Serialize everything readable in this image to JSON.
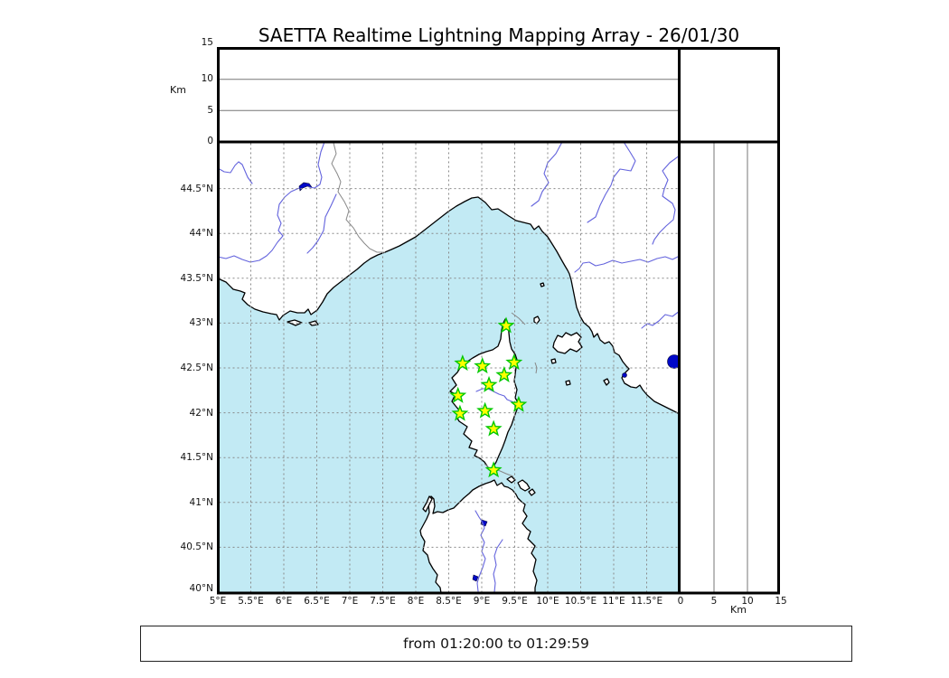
{
  "title": "SAETTA Realtime Lightning Mapping Array - 26/01/30",
  "time_range": "from 01:20:00 to 01:29:59",
  "units": {
    "altitude_left": "Km",
    "altitude_right": "Km"
  },
  "axes": {
    "alt_left": [
      "15",
      "10",
      "5",
      "0"
    ],
    "alt_right": [
      "0",
      "5",
      "10",
      "15"
    ],
    "lat": [
      "44.5°N",
      "44°N",
      "43.5°N",
      "43°N",
      "42.5°N",
      "42°N",
      "41.5°N",
      "41°N",
      "40.5°N",
      "40°N"
    ],
    "lon": [
      "5°E",
      "5.5°E",
      "6°E",
      "6.5°E",
      "7°E",
      "7.5°E",
      "8°E",
      "8.5°E",
      "9°E",
      "9.5°E",
      "10°E",
      "10.5°E",
      "11°E",
      "11.5°E"
    ]
  },
  "colors": {
    "sea": "#c2eaf4",
    "land": "#ffffff",
    "coast": "#000000",
    "river": "#6363dd",
    "lake": "#0008c8",
    "grid": "#888888",
    "border_line": "#888888",
    "station_fill": "#ffff00",
    "station_stroke": "#00c800"
  },
  "stations": [
    {
      "lon": 9.37,
      "lat": 42.98
    },
    {
      "lon": 8.71,
      "lat": 42.56
    },
    {
      "lon": 9.01,
      "lat": 42.53
    },
    {
      "lon": 9.49,
      "lat": 42.57
    },
    {
      "lon": 9.34,
      "lat": 42.43
    },
    {
      "lon": 9.11,
      "lat": 42.32
    },
    {
      "lon": 8.64,
      "lat": 42.2
    },
    {
      "lon": 9.56,
      "lat": 42.1
    },
    {
      "lon": 9.05,
      "lat": 42.03
    },
    {
      "lon": 8.67,
      "lat": 42.0
    },
    {
      "lon": 9.18,
      "lat": 41.83
    },
    {
      "lon": 9.18,
      "lat": 41.37
    }
  ],
  "chart_data": {
    "type": "map",
    "title": "SAETTA Realtime Lightning Mapping Array - 26/01/30",
    "lon_range_deg_e": [
      5.0,
      12.0
    ],
    "lat_range_deg_n": [
      40.0,
      45.0
    ],
    "lon_tick_labels": [
      "5°E",
      "5.5°E",
      "6°E",
      "6.5°E",
      "7°E",
      "7.5°E",
      "8°E",
      "8.5°E",
      "9°E",
      "9.5°E",
      "10°E",
      "10.5°E",
      "11°E",
      "11.5°E"
    ],
    "lat_tick_labels": [
      "44.5°N",
      "44°N",
      "43.5°N",
      "43°N",
      "42.5°N",
      "42°N",
      "41.5°N",
      "41°N",
      "40.5°N",
      "40°N"
    ],
    "altitude_panels_km_range": [
      0,
      15
    ],
    "altitude_tick_labels_km": [
      0,
      5,
      10,
      15
    ],
    "altitude_gridlines_km": [
      5,
      10
    ],
    "station_markers_lonlat": [
      [
        9.37,
        42.98
      ],
      [
        8.71,
        42.56
      ],
      [
        9.01,
        42.53
      ],
      [
        9.49,
        42.57
      ],
      [
        9.34,
        42.43
      ],
      [
        9.11,
        42.32
      ],
      [
        8.64,
        42.2
      ],
      [
        9.56,
        42.1
      ],
      [
        9.05,
        42.03
      ],
      [
        8.67,
        42.0
      ],
      [
        9.18,
        41.83
      ],
      [
        9.18,
        41.37
      ]
    ],
    "lightning_sources": [],
    "time_window_label": "from 01:20:00 to 01:29:59"
  }
}
